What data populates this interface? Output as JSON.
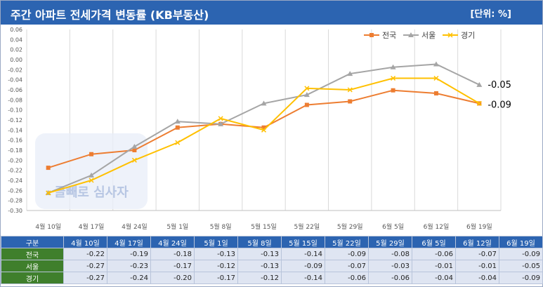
{
  "header": {
    "title": "주간 아파트 전세가격 변동률 (KB부동산)",
    "unit": "[단위: %]"
  },
  "colors": {
    "header_bg": "#2c64b1",
    "row_label_bg": "#3f7f2c",
    "cell_bg": "#dfe5f2",
    "series_nationwide": "#ed7d31",
    "series_seoul": "#a5a5a5",
    "series_gyeonggi": "#ffc000"
  },
  "chart_data": {
    "type": "line",
    "categories": [
      "4월 10일",
      "4월 17일",
      "4월 24일",
      "5월 1일",
      "5월 8일",
      "5월 15일",
      "5월 22일",
      "5월 29일",
      "6월 5일",
      "6월 12일",
      "6월 19일"
    ],
    "series": [
      {
        "name": "전국",
        "marker": "square",
        "values": [
          -0.215,
          -0.188,
          -0.18,
          -0.135,
          -0.128,
          -0.135,
          -0.09,
          -0.083,
          -0.061,
          -0.067,
          -0.087
        ]
      },
      {
        "name": "서울",
        "marker": "triangle",
        "values": [
          -0.265,
          -0.23,
          -0.173,
          -0.123,
          -0.128,
          -0.087,
          -0.07,
          -0.028,
          -0.015,
          -0.009,
          -0.05
        ]
      },
      {
        "name": "경기",
        "marker": "x",
        "values": [
          -0.265,
          -0.24,
          -0.2,
          -0.165,
          -0.117,
          -0.14,
          -0.057,
          -0.06,
          -0.037,
          -0.037,
          -0.087
        ]
      }
    ],
    "yticks": [
      "0.06",
      "0.04",
      "0.02",
      "0.00",
      "-0.02",
      "-0.04",
      "-0.06",
      "-0.08",
      "-0.10",
      "-0.12",
      "-0.14",
      "-0.16",
      "-0.18",
      "-0.20",
      "-0.22",
      "-0.24",
      "-0.26",
      "-0.28",
      "-0.30"
    ],
    "ylim": [
      -0.3,
      0.06
    ],
    "grid": "vertical",
    "legend": "top-right",
    "annotations": [
      {
        "text": "-0.05",
        "series": "서울"
      },
      {
        "text": "-0.09",
        "series": "전국"
      }
    ],
    "watermark": "글빼로 심사자"
  },
  "table": {
    "header": [
      "구분",
      "4월 10일",
      "4월 17일",
      "4월 24일",
      "5월 1일",
      "5월 8일",
      "5월 15일",
      "5월 22일",
      "5월 29일",
      "6월 5일",
      "6월 12일",
      "6월 19일"
    ],
    "rows": [
      {
        "label": "전국",
        "values": [
          "-0.22",
          "-0.19",
          "-0.18",
          "-0.13",
          "-0.13",
          "-0.14",
          "-0.09",
          "-0.08",
          "-0.06",
          "-0.07",
          "-0.09"
        ]
      },
      {
        "label": "서울",
        "values": [
          "-0.27",
          "-0.23",
          "-0.17",
          "-0.12",
          "-0.13",
          "-0.09",
          "-0.07",
          "-0.03",
          "-0.01",
          "-0.01",
          "-0.05"
        ]
      },
      {
        "label": "경기",
        "values": [
          "-0.27",
          "-0.24",
          "-0.20",
          "-0.17",
          "-0.12",
          "-0.14",
          "-0.06",
          "-0.06",
          "-0.04",
          "-0.04",
          "-0.09"
        ]
      }
    ]
  }
}
